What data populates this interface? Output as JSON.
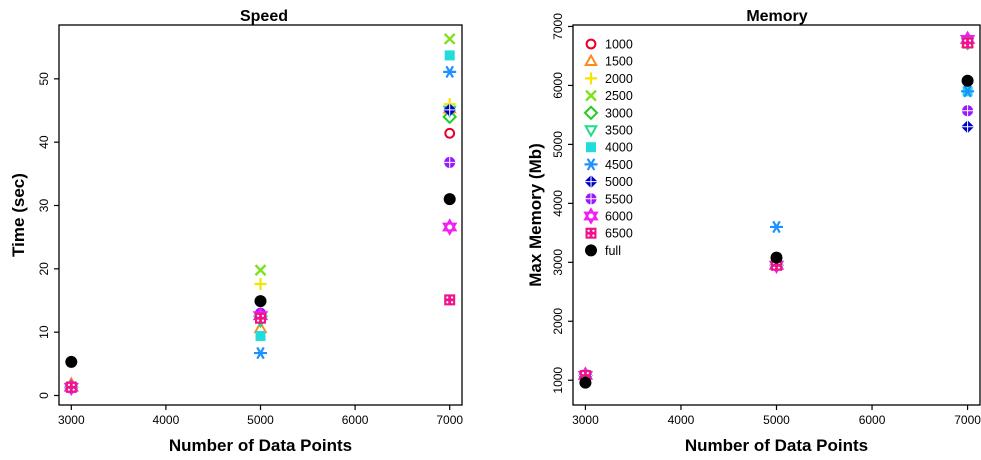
{
  "chart_data": [
    {
      "type": "scatter",
      "title": "Speed",
      "xlabel": "Number of Data Points",
      "ylabel": "Time (sec)",
      "xlim": [
        2870,
        7130
      ],
      "ylim": [
        -1.5,
        58.5
      ],
      "xticks": [
        "3000",
        "4000",
        "5000",
        "6000",
        "7000"
      ],
      "yticks": [
        "0",
        "10",
        "20",
        "30",
        "40",
        "50"
      ],
      "series": [
        {
          "name": "1000",
          "color": "#e8002a",
          "marker": "circle-open",
          "points": [
            [
              3000,
              1.5
            ],
            [
              5000,
              12.8
            ],
            [
              7000,
              41.4
            ]
          ]
        },
        {
          "name": "1500",
          "color": "#ff8c1a",
          "marker": "triangle-open",
          "points": [
            [
              3000,
              1.8
            ],
            [
              5000,
              10.6
            ],
            [
              7000,
              45.3
            ]
          ]
        },
        {
          "name": "2000",
          "color": "#f2e600",
          "marker": "plus",
          "points": [
            [
              3000,
              1.3
            ],
            [
              5000,
              17.6
            ],
            [
              7000,
              46.0
            ]
          ]
        },
        {
          "name": "2500",
          "color": "#7fe11c",
          "marker": "x",
          "points": [
            [
              3000,
              1.4
            ],
            [
              5000,
              19.8
            ],
            [
              7000,
              56.3
            ]
          ]
        },
        {
          "name": "3000",
          "color": "#22cc22",
          "marker": "diamond-open",
          "points": [
            [
              3000,
              1.3
            ],
            [
              5000,
              12.5
            ],
            [
              7000,
              44.0
            ]
          ]
        },
        {
          "name": "3500",
          "color": "#1fdc8a",
          "marker": "triangle-down-open",
          "points": [
            [
              3000,
              1.2
            ],
            [
              5000,
              11.8
            ],
            [
              7000,
              45.0
            ]
          ]
        },
        {
          "name": "4000",
          "color": "#22dcdc",
          "marker": "square",
          "points": [
            [
              3000,
              1.2
            ],
            [
              5000,
              9.4
            ],
            [
              7000,
              53.7
            ]
          ]
        },
        {
          "name": "4500",
          "color": "#1e90ff",
          "marker": "asterisk",
          "points": [
            [
              3000,
              1.3
            ],
            [
              5000,
              6.7
            ],
            [
              7000,
              51.1
            ]
          ]
        },
        {
          "name": "5000",
          "color": "#0000cc",
          "marker": "diamond-plus",
          "points": [
            [
              3000,
              1.3
            ],
            [
              5000,
              12.9
            ],
            [
              7000,
              45.1
            ]
          ]
        },
        {
          "name": "5500",
          "color": "#9a1aff",
          "marker": "circle-plus",
          "points": [
            [
              3000,
              1.3
            ],
            [
              5000,
              13.0
            ],
            [
              7000,
              36.8
            ]
          ]
        },
        {
          "name": "6000",
          "color": "#f01ef0",
          "marker": "star-of-david",
          "points": [
            [
              3000,
              1.3
            ],
            [
              5000,
              12.6
            ],
            [
              7000,
              26.6
            ]
          ]
        },
        {
          "name": "6500",
          "color": "#f0148c",
          "marker": "square-dots",
          "points": [
            [
              3000,
              1.3
            ],
            [
              5000,
              12.2
            ],
            [
              7000,
              15.1
            ]
          ]
        },
        {
          "name": "full",
          "color": "#000000",
          "marker": "circle",
          "points": [
            [
              3000,
              5.3
            ],
            [
              5000,
              14.9
            ],
            [
              7000,
              31.0
            ]
          ]
        }
      ]
    },
    {
      "type": "scatter",
      "title": "Memory",
      "xlabel": "Number of Data Points",
      "ylabel": "Max Memory (Mb)",
      "xlim": [
        2870,
        7130
      ],
      "ylim": [
        580,
        7025
      ],
      "xticks": [
        "3000",
        "4000",
        "5000",
        "6000",
        "7000"
      ],
      "yticks": [
        "1000",
        "2000",
        "3000",
        "4000",
        "5000",
        "6000",
        "7000"
      ],
      "legend": {
        "position": "top-left"
      },
      "series": [
        {
          "name": "1000",
          "color": "#e8002a",
          "marker": "circle-open",
          "points": [
            [
              3000,
              1080
            ],
            [
              5000,
              2950
            ],
            [
              7000,
              6720
            ]
          ]
        },
        {
          "name": "1500",
          "color": "#ff8c1a",
          "marker": "triangle-open",
          "points": [
            [
              3000,
              1110
            ],
            [
              5000,
              2950
            ],
            [
              7000,
              6720
            ]
          ]
        },
        {
          "name": "2000",
          "color": "#f2e600",
          "marker": "plus",
          "points": [
            [
              3000,
              1100
            ],
            [
              5000,
              2950
            ],
            [
              7000,
              6720
            ]
          ]
        },
        {
          "name": "2500",
          "color": "#7fe11c",
          "marker": "x",
          "points": [
            [
              3000,
              1080
            ],
            [
              5000,
              2950
            ],
            [
              7000,
              6720
            ]
          ]
        },
        {
          "name": "3000",
          "color": "#22cc22",
          "marker": "diamond-open",
          "points": [
            [
              3000,
              1080
            ],
            [
              5000,
              2950
            ],
            [
              7000,
              6720
            ]
          ]
        },
        {
          "name": "3500",
          "color": "#1fdc8a",
          "marker": "triangle-down-open",
          "points": [
            [
              3000,
              1080
            ],
            [
              5000,
              2950
            ],
            [
              7000,
              6720
            ]
          ]
        },
        {
          "name": "4000",
          "color": "#22dcdc",
          "marker": "square",
          "points": [
            [
              3000,
              1080
            ],
            [
              5000,
              2950
            ],
            [
              7000,
              5900
            ]
          ]
        },
        {
          "name": "4500",
          "color": "#1e90ff",
          "marker": "asterisk",
          "points": [
            [
              3000,
              1080
            ],
            [
              5000,
              3600
            ],
            [
              7000,
              5900
            ]
          ]
        },
        {
          "name": "5000",
          "color": "#0000cc",
          "marker": "diamond-plus",
          "points": [
            [
              3000,
              1080
            ],
            [
              5000,
              2950
            ],
            [
              7000,
              5300
            ]
          ]
        },
        {
          "name": "5500",
          "color": "#9a1aff",
          "marker": "circle-plus",
          "points": [
            [
              3000,
              1080
            ],
            [
              5000,
              2950
            ],
            [
              7000,
              5570
            ]
          ]
        },
        {
          "name": "6000",
          "color": "#f01ef0",
          "marker": "star-of-david",
          "points": [
            [
              3000,
              1080
            ],
            [
              5000,
              2950
            ],
            [
              7000,
              6780
            ]
          ]
        },
        {
          "name": "6500",
          "color": "#f0148c",
          "marker": "square-dots",
          "points": [
            [
              3000,
              1080
            ],
            [
              5000,
              2950
            ],
            [
              7000,
              6720
            ]
          ]
        },
        {
          "name": "full",
          "color": "#000000",
          "marker": "circle",
          "points": [
            [
              3000,
              960
            ],
            [
              5000,
              3080
            ],
            [
              7000,
              6080
            ]
          ]
        }
      ]
    }
  ]
}
